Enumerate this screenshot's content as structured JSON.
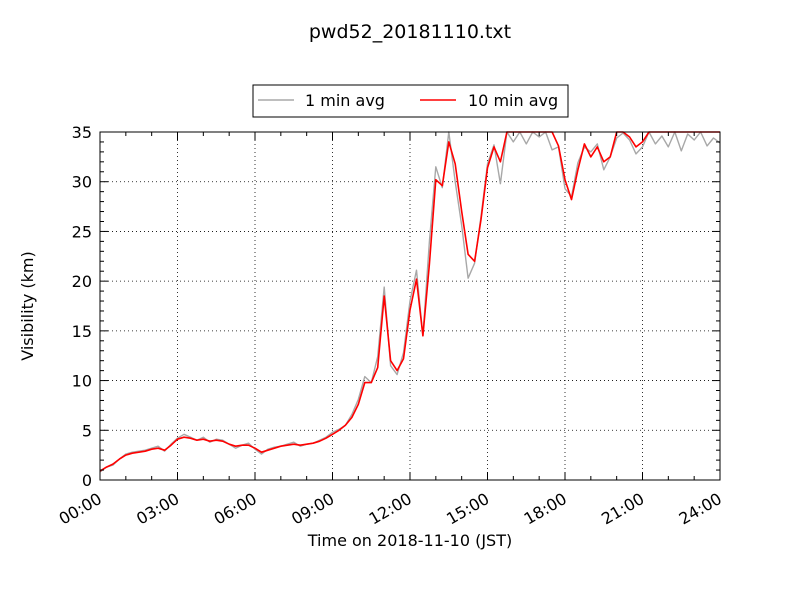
{
  "chart_data": {
    "type": "line",
    "title": "pwd52_20181110.txt",
    "xlabel": "Time on 2018-11-10 (JST)",
    "ylabel": "Visibility (km)",
    "x_tick_labels": [
      "00:00",
      "03:00",
      "06:00",
      "09:00",
      "12:00",
      "15:00",
      "18:00",
      "21:00",
      "24:00"
    ],
    "x_tick_hours": [
      0,
      3,
      6,
      9,
      12,
      15,
      18,
      21,
      24
    ],
    "y_tick_labels": [
      "0",
      "5",
      "10",
      "15",
      "20",
      "25",
      "30",
      "35"
    ],
    "y_tick_values": [
      0,
      5,
      10,
      15,
      20,
      25,
      30,
      35
    ],
    "xlim_hours": [
      0,
      24
    ],
    "ylim": [
      0,
      35
    ],
    "grid": true,
    "legend_position": "top-center",
    "series": [
      {
        "name": "1 min avg",
        "color": "#a8a8a8",
        "x_hours": [
          0,
          0.25,
          0.5,
          0.75,
          1,
          1.25,
          1.5,
          1.75,
          2,
          2.25,
          2.5,
          2.75,
          3,
          3.25,
          3.5,
          3.75,
          4,
          4.25,
          4.5,
          4.75,
          5,
          5.25,
          5.5,
          5.75,
          6,
          6.25,
          6.5,
          6.75,
          7,
          7.25,
          7.5,
          7.75,
          8,
          8.25,
          8.5,
          8.75,
          9,
          9.25,
          9.5,
          9.75,
          10,
          10.25,
          10.5,
          10.75,
          11,
          11.25,
          11.5,
          11.75,
          12,
          12.25,
          12.5,
          12.75,
          13,
          13.25,
          13.5,
          13.75,
          14,
          14.25,
          14.5,
          14.75,
          15,
          15.25,
          15.5,
          15.75,
          16,
          16.25,
          16.5,
          16.75,
          17,
          17.25,
          17.5,
          17.75,
          18,
          18.25,
          18.5,
          18.75,
          19,
          19.25,
          19.5,
          19.75,
          20,
          20.25,
          20.5,
          20.75,
          21,
          21.25,
          21.5,
          21.75,
          22,
          22.25,
          22.5,
          22.75,
          23,
          23.25,
          23.5,
          23.75,
          24
        ],
        "values": [
          0.8,
          1.3,
          1.5,
          2.1,
          2.6,
          2.8,
          2.9,
          3.0,
          3.2,
          3.4,
          2.9,
          3.6,
          4.2,
          4.6,
          4.3,
          4.0,
          4.3,
          3.8,
          4.1,
          4.0,
          3.6,
          3.2,
          3.5,
          3.7,
          3.1,
          2.6,
          3.1,
          3.3,
          3.4,
          3.6,
          3.8,
          3.4,
          3.6,
          3.7,
          4.0,
          4.3,
          4.8,
          5.1,
          5.5,
          6.6,
          8.1,
          10.4,
          9.8,
          12.4,
          19.4,
          11.5,
          10.6,
          12.8,
          18.0,
          21.1,
          14.5,
          24.0,
          31.5,
          29.4,
          35.0,
          30.0,
          25.6,
          20.3,
          21.8,
          26.5,
          31.8,
          33.7,
          29.8,
          35.0,
          34.0,
          35.0,
          33.8,
          35.0,
          34.5,
          35.0,
          33.2,
          33.5,
          29.3,
          28.5,
          31.9,
          33.5,
          33.0,
          33.8,
          31.2,
          32.5,
          34.4,
          34.9,
          34.2,
          32.8,
          33.5,
          35.0,
          33.8,
          34.6,
          33.5,
          35.0,
          33.1,
          34.8,
          34.2,
          35.0,
          33.6,
          34.4,
          33.9
        ]
      },
      {
        "name": "10 min avg",
        "color": "#ff0000",
        "x_hours": [
          0,
          0.25,
          0.5,
          0.75,
          1,
          1.25,
          1.5,
          1.75,
          2,
          2.25,
          2.5,
          2.75,
          3,
          3.25,
          3.5,
          3.75,
          4,
          4.25,
          4.5,
          4.75,
          5,
          5.25,
          5.5,
          5.75,
          6,
          6.25,
          6.5,
          6.75,
          7,
          7.25,
          7.5,
          7.75,
          8,
          8.25,
          8.5,
          8.75,
          9,
          9.25,
          9.5,
          9.75,
          10,
          10.25,
          10.5,
          10.75,
          11,
          11.25,
          11.5,
          11.75,
          12,
          12.25,
          12.5,
          12.75,
          13,
          13.25,
          13.5,
          13.75,
          14,
          14.25,
          14.5,
          14.75,
          15,
          15.25,
          15.5,
          15.75,
          16,
          16.25,
          16.5,
          16.75,
          17,
          17.25,
          17.5,
          17.75,
          18,
          18.25,
          18.5,
          18.75,
          19,
          19.25,
          19.5,
          19.75,
          20,
          20.25,
          20.5,
          20.75,
          21,
          21.25,
          21.5,
          21.75,
          22,
          22.25,
          22.5,
          22.75,
          23,
          23.25,
          23.5,
          23.75,
          24
        ],
        "values": [
          0.9,
          1.3,
          1.6,
          2.1,
          2.5,
          2.7,
          2.8,
          2.9,
          3.1,
          3.2,
          3.0,
          3.5,
          4.1,
          4.3,
          4.2,
          4.0,
          4.1,
          3.9,
          4.0,
          3.9,
          3.6,
          3.4,
          3.5,
          3.5,
          3.2,
          2.8,
          3.0,
          3.2,
          3.4,
          3.5,
          3.6,
          3.5,
          3.6,
          3.7,
          3.9,
          4.2,
          4.6,
          5.0,
          5.5,
          6.3,
          7.6,
          9.8,
          9.8,
          11.3,
          18.5,
          12.0,
          11.0,
          12.2,
          17.1,
          20.2,
          14.5,
          21.7,
          30.2,
          29.6,
          34.0,
          31.8,
          27.0,
          22.7,
          22.0,
          26.2,
          31.4,
          33.5,
          32.0,
          35.0,
          35.0,
          35.0,
          35.0,
          35.0,
          35.0,
          35.0,
          35.0,
          33.6,
          30.2,
          28.2,
          31.2,
          33.8,
          32.5,
          33.5,
          32.0,
          32.5,
          35.0,
          35.0,
          34.5,
          33.5,
          34.0,
          35.0,
          35.0,
          35.0,
          35.0,
          35.0,
          35.0,
          35.0,
          35.0,
          35.0,
          35.0,
          35.0,
          35.0
        ]
      }
    ]
  }
}
